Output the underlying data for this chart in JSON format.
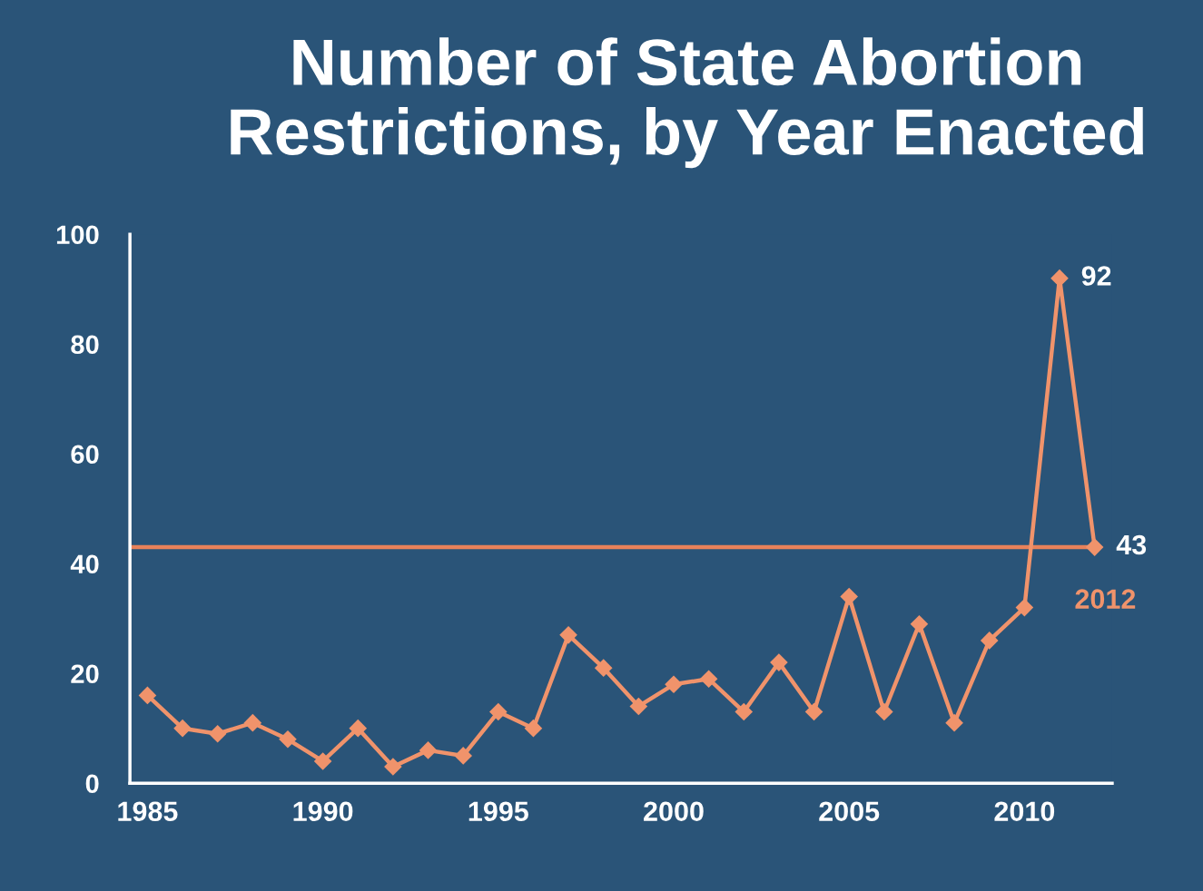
{
  "chart_data": {
    "type": "line",
    "title": "Number of State Abortion\nRestrictions, by Year Enacted",
    "x": [
      1985,
      1986,
      1987,
      1988,
      1989,
      1990,
      1991,
      1992,
      1993,
      1994,
      1995,
      1996,
      1997,
      1998,
      1999,
      2000,
      2001,
      2002,
      2003,
      2004,
      2005,
      2006,
      2007,
      2008,
      2009,
      2010,
      2011,
      2012
    ],
    "series": [
      {
        "color": "#f0936b",
        "values": [
          16,
          10,
          9,
          11,
          8,
          4,
          10,
          3,
          6,
          5,
          13,
          10,
          27,
          21,
          14,
          18,
          19,
          13,
          22,
          13,
          34,
          13,
          29,
          11,
          26,
          32,
          92,
          43
        ],
        "value_labels": [
          null,
          null,
          null,
          null,
          null,
          null,
          null,
          null,
          null,
          null,
          null,
          null,
          null,
          null,
          null,
          null,
          null,
          null,
          null,
          null,
          null,
          null,
          null,
          null,
          null,
          null,
          "92",
          "43"
        ]
      }
    ],
    "xlim": [
      1984.5,
      2012.5
    ],
    "xticks": [
      1985,
      1990,
      1995,
      2000,
      2005,
      2010
    ],
    "ylim": [
      0,
      100
    ],
    "yticks": [
      0,
      20,
      40,
      60,
      80,
      100
    ],
    "ref_lines": [
      {
        "axis": "y",
        "value": 43,
        "color": "#e8825a"
      }
    ],
    "annotations": [
      {
        "text": "2012",
        "x": 2012,
        "y": 43
      }
    ],
    "marker": "diamond",
    "line_style": "solid",
    "grid": false
  }
}
